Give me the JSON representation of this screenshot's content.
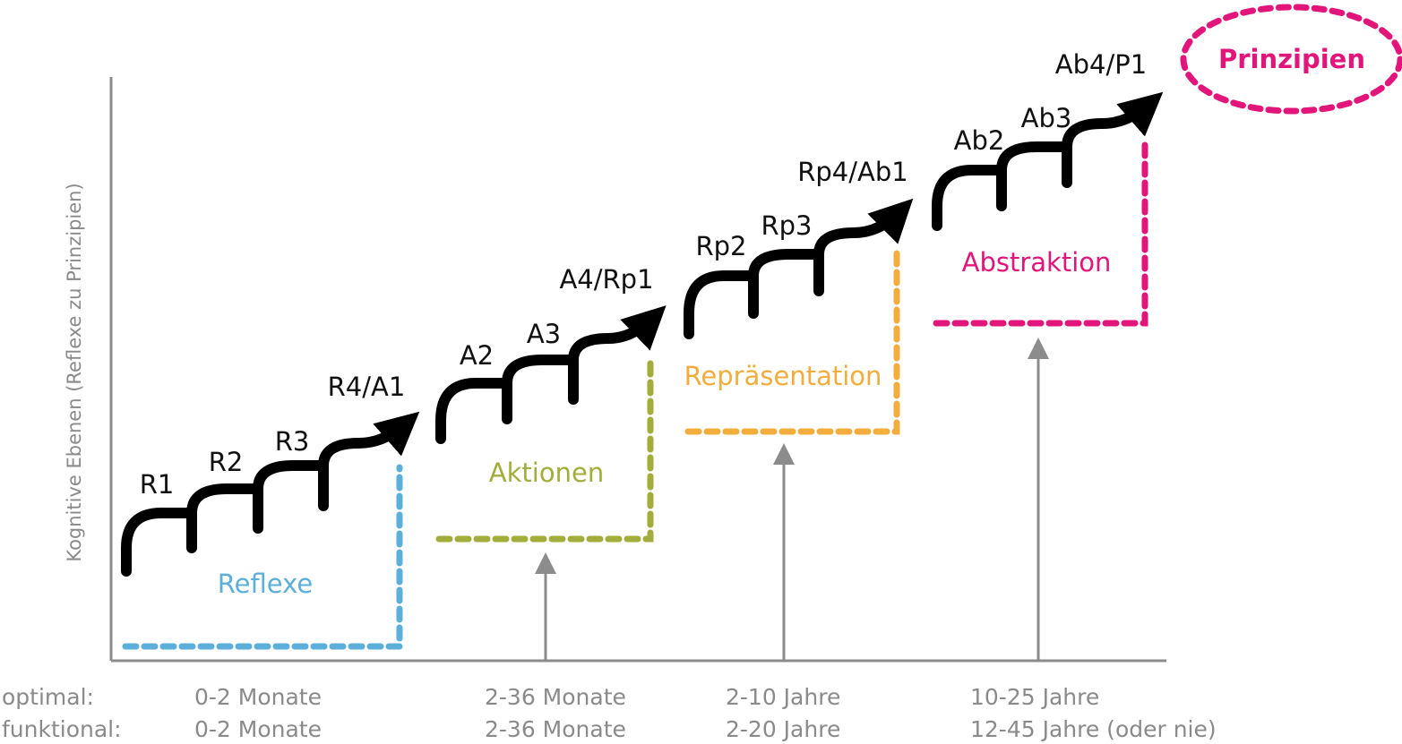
{
  "colors": {
    "axis": "#8c8c8c",
    "stairs": "#000000",
    "reflexe": "#5bafd8",
    "aktionen": "#a3ad3b",
    "repraesentation": "#f2ad3d",
    "abstraktion": "#e2157a",
    "principles": "#e2157a",
    "bottom_text": "#8a8a8a"
  },
  "y_axis": {
    "label": "Kognitive Ebenen (Reflexe zu Prinzipien)"
  },
  "stages": [
    {
      "name": "Reflexe",
      "color_key": "reflexe",
      "steps": [
        "R1",
        "R2",
        "R3",
        "R4/A1"
      ]
    },
    {
      "name": "Aktionen",
      "color_key": "aktionen",
      "steps": [
        "A2",
        "A3",
        "A4/Rp1"
      ]
    },
    {
      "name": "Repräsentation",
      "color_key": "repraesentation",
      "steps": [
        "Rp2",
        "Rp3",
        "Rp4/Ab1"
      ]
    },
    {
      "name": "Abstraktion",
      "color_key": "abstraktion",
      "steps": [
        "Ab2",
        "Ab3",
        "Ab4/P1"
      ]
    }
  ],
  "principles": {
    "label": "Prinzipien"
  },
  "bottom": {
    "row_labels": {
      "optimal": "optimal:",
      "funktional": "funktional:"
    },
    "columns": [
      {
        "optimal": "0-2 Monate",
        "funktional": "0-2 Monate"
      },
      {
        "optimal": "2-36 Monate",
        "funktional": "2-36 Monate"
      },
      {
        "optimal": "2-10 Jahre",
        "funktional": "2-20 Jahre"
      },
      {
        "optimal": "10-25 Jahre",
        "funktional": "12-45 Jahre (oder nie)"
      }
    ]
  }
}
